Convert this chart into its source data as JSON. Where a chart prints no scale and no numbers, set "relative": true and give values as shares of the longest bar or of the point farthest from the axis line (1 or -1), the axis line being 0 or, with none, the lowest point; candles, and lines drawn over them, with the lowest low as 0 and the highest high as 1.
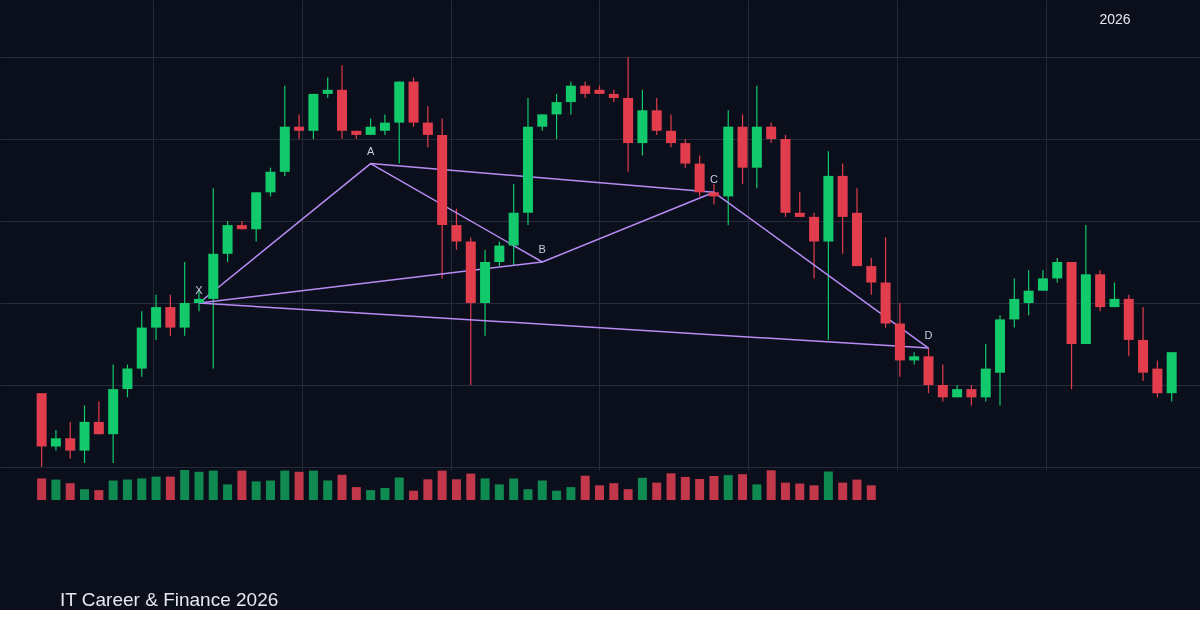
{
  "chart_data": [
    {
      "type": "candlestick",
      "relative": true,
      "grid": true,
      "categories": [
        null,
        null,
        null,
        null,
        null,
        null,
        null,
        null,
        null,
        null,
        null,
        null,
        null,
        null,
        null,
        null,
        null,
        null,
        null,
        null,
        null,
        null,
        null,
        null,
        null,
        null,
        null,
        null,
        null,
        null,
        null,
        null,
        null,
        null,
        null,
        null,
        null,
        null,
        null,
        null,
        null,
        null,
        null,
        null,
        null,
        null,
        null,
        null,
        null,
        null,
        null,
        null,
        null,
        null,
        null,
        null,
        null,
        null,
        null,
        null,
        null,
        null,
        null,
        null,
        null,
        null,
        null,
        null,
        null,
        null,
        null,
        null,
        null,
        null,
        null,
        null,
        null,
        null,
        null,
        null
      ],
      "ohlc": [
        [
          0.18,
          0.18,
          0,
          0.05
        ],
        [
          0.05,
          0.09,
          0.04,
          0.07
        ],
        [
          0.07,
          0.11,
          0.02,
          0.04
        ],
        [
          0.04,
          0.15,
          0.01,
          0.11
        ],
        [
          0.11,
          0.16,
          0.08,
          0.08
        ],
        [
          0.08,
          0.25,
          0.01,
          0.19
        ],
        [
          0.19,
          0.25,
          0.17,
          0.24
        ],
        [
          0.24,
          0.38,
          0.22,
          0.34
        ],
        [
          0.34,
          0.42,
          0.31,
          0.39
        ],
        [
          0.39,
          0.42,
          0.32,
          0.34
        ],
        [
          0.34,
          0.5,
          0.32,
          0.4
        ],
        [
          0.4,
          0.43,
          0.38,
          0.41
        ],
        [
          0.41,
          0.68,
          0.24,
          0.52
        ],
        [
          0.52,
          0.6,
          0.5,
          0.59
        ],
        [
          0.59,
          0.6,
          0.58,
          0.58
        ],
        [
          0.58,
          0.67,
          0.55,
          0.67
        ],
        [
          0.67,
          0.73,
          0.66,
          0.72
        ],
        [
          0.72,
          0.93,
          0.71,
          0.83
        ],
        [
          0.83,
          0.86,
          0.8,
          0.82
        ],
        [
          0.82,
          0.91,
          0.8,
          0.91
        ],
        [
          0.91,
          0.95,
          0.9,
          0.92
        ],
        [
          0.92,
          0.98,
          0.8,
          0.82
        ],
        [
          0.82,
          0.82,
          0.8,
          0.81
        ],
        [
          0.81,
          0.85,
          0.81,
          0.83
        ],
        [
          0.82,
          0.86,
          0.81,
          0.84
        ],
        [
          0.84,
          0.94,
          0.74,
          0.94
        ],
        [
          0.94,
          0.95,
          0.83,
          0.84
        ],
        [
          0.84,
          0.88,
          0.78,
          0.81
        ],
        [
          0.81,
          0.85,
          0.46,
          0.59
        ],
        [
          0.59,
          0.63,
          0.53,
          0.55
        ],
        [
          0.55,
          0.56,
          0.2,
          0.4
        ],
        [
          0.4,
          0.53,
          0.32,
          0.5
        ],
        [
          0.5,
          0.55,
          0.49,
          0.54
        ],
        [
          0.54,
          0.69,
          0.49,
          0.62
        ],
        [
          0.62,
          0.9,
          0.59,
          0.83
        ],
        [
          0.83,
          0.86,
          0.82,
          0.86
        ],
        [
          0.86,
          0.91,
          0.8,
          0.89
        ],
        [
          0.89,
          0.94,
          0.86,
          0.93
        ],
        [
          0.93,
          0.94,
          0.9,
          0.91
        ],
        [
          0.92,
          0.93,
          0.91,
          0.91
        ],
        [
          0.91,
          0.92,
          0.89,
          0.9
        ],
        [
          0.9,
          1,
          0.72,
          0.79
        ],
        [
          0.79,
          0.92,
          0.76,
          0.87
        ],
        [
          0.87,
          0.9,
          0.81,
          0.82
        ],
        [
          0.82,
          0.86,
          0.78,
          0.79
        ],
        [
          0.79,
          0.8,
          0.73,
          0.74
        ],
        [
          0.74,
          0.76,
          0.66,
          0.67
        ],
        [
          0.67,
          0.69,
          0.64,
          0.66
        ],
        [
          0.66,
          0.87,
          0.59,
          0.83
        ],
        [
          0.83,
          0.86,
          0.69,
          0.73
        ],
        [
          0.73,
          0.93,
          0.68,
          0.83
        ],
        [
          0.83,
          0.84,
          0.79,
          0.8
        ],
        [
          0.8,
          0.81,
          0.61,
          0.62
        ],
        [
          0.62,
          0.67,
          0.61,
          0.61
        ],
        [
          0.61,
          0.62,
          0.46,
          0.55
        ],
        [
          0.55,
          0.77,
          0.31,
          0.71
        ],
        [
          0.71,
          0.74,
          0.52,
          0.61
        ],
        [
          0.62,
          0.68,
          0.49,
          0.49
        ],
        [
          0.49,
          0.51,
          0.42,
          0.45
        ],
        [
          0.45,
          0.56,
          0.34,
          0.35
        ],
        [
          0.35,
          0.4,
          0.22,
          0.26
        ],
        [
          0.26,
          0.28,
          0.25,
          0.27
        ],
        [
          0.27,
          0.29,
          0.18,
          0.2
        ],
        [
          0.2,
          0.25,
          0.16,
          0.17
        ],
        [
          0.17,
          0.2,
          0.17,
          0.19
        ],
        [
          0.19,
          0.2,
          0.15,
          0.17
        ],
        [
          0.17,
          0.3,
          0.16,
          0.24
        ],
        [
          0.23,
          0.37,
          0.15,
          0.36
        ],
        [
          0.36,
          0.46,
          0.34,
          0.41
        ],
        [
          0.4,
          0.48,
          0.37,
          0.43
        ],
        [
          0.43,
          0.48,
          0.43,
          0.46
        ],
        [
          0.46,
          0.51,
          0.45,
          0.5
        ],
        [
          0.5,
          0.5,
          0.19,
          0.3
        ],
        [
          0.3,
          0.59,
          0.3,
          0.47
        ],
        [
          0.47,
          0.48,
          0.38,
          0.39
        ],
        [
          0.39,
          0.45,
          0.39,
          0.41
        ],
        [
          0.41,
          0.42,
          0.27,
          0.31
        ],
        [
          0.31,
          0.39,
          0.21,
          0.23
        ],
        [
          0.24,
          0.26,
          0.17,
          0.18
        ],
        [
          0.18,
          0.28,
          0.16,
          0.28
        ]
      ],
      "colors": [
        "#e23d4c",
        "#12c96b",
        "#e23d4c",
        "#12c96b",
        "#e23d4c",
        "#12c96b",
        "#12c96b",
        "#12c96b",
        "#12c96b",
        "#e23d4c",
        "#12c96b",
        "#12c96b",
        "#12c96b",
        "#12c96b",
        "#e23d4c",
        "#12c96b",
        "#12c96b",
        "#12c96b",
        "#e23d4c",
        "#12c96b",
        "#12c96b",
        "#e23d4c",
        "#e23d4c",
        "#12c96b",
        "#12c96b",
        "#12c96b",
        "#e23d4c",
        "#e23d4c",
        "#e23d4c",
        "#e23d4c",
        "#e23d4c",
        "#12c96b",
        "#12c96b",
        "#12c96b",
        "#12c96b",
        "#12c96b",
        "#12c96b",
        "#12c96b",
        "#e23d4c",
        "#e23d4c",
        "#e23d4c",
        "#e23d4c",
        "#12c96b",
        "#e23d4c",
        "#e23d4c",
        "#e23d4c",
        "#e23d4c",
        "#e23d4c",
        "#12c96b",
        "#e23d4c",
        "#12c96b",
        "#e23d4c",
        "#e23d4c",
        "#e23d4c",
        "#e23d4c",
        "#12c96b",
        "#e23d4c",
        "#e23d4c",
        "#e23d4c",
        "#e23d4c",
        "#e23d4c",
        "#12c96b",
        "#e23d4c",
        "#e23d4c",
        "#12c96b",
        "#e23d4c",
        "#12c96b",
        "#12c96b",
        "#12c96b",
        "#12c96b",
        "#12c96b",
        "#12c96b",
        "#e23d4c",
        "#12c96b",
        "#e23d4c",
        "#12c96b",
        "#e23d4c",
        "#e23d4c",
        "#e23d4c",
        "#12c96b"
      ],
      "series": [
        {
          "type": "line",
          "color": "#b88cf5",
          "values": [
            null,
            null,
            null,
            null,
            null,
            null,
            null,
            null,
            null,
            null,
            null,
            0.4,
            null,
            null,
            null,
            null,
            null,
            null,
            null,
            null,
            null,
            null,
            null,
            0.74,
            null,
            null,
            null,
            null,
            null,
            null,
            null,
            null,
            null,
            null,
            null,
            0.5,
            null,
            null,
            null,
            null,
            null,
            null,
            null,
            null,
            null,
            null,
            null,
            0.67,
            null,
            null,
            null,
            null,
            null,
            null,
            null,
            null,
            null,
            null,
            null,
            null,
            null,
            null,
            0.29,
            null,
            null,
            null,
            null,
            null,
            null,
            null,
            null,
            null,
            null,
            null,
            null,
            null,
            null,
            null,
            null,
            null
          ]
        },
        {
          "type": "line",
          "color": "#b88cf5",
          "values": [
            null,
            null,
            null,
            null,
            null,
            null,
            null,
            null,
            null,
            null,
            null,
            0.4,
            null,
            null,
            null,
            null,
            null,
            null,
            null,
            null,
            null,
            null,
            null,
            null,
            null,
            null,
            null,
            null,
            null,
            null,
            null,
            null,
            null,
            null,
            null,
            0.5,
            null,
            null,
            null,
            null,
            null,
            null,
            null,
            null,
            null,
            null,
            null,
            null,
            null,
            null,
            null,
            null,
            null,
            null,
            null,
            null,
            null,
            null,
            null,
            null,
            null,
            null,
            null,
            null,
            null,
            null,
            null,
            null,
            null,
            null,
            null,
            null,
            null,
            null,
            null,
            null,
            null,
            null,
            null,
            null
          ]
        },
        {
          "type": "line",
          "color": "#b88cf5",
          "values": [
            null,
            null,
            null,
            null,
            null,
            null,
            null,
            null,
            null,
            null,
            null,
            null,
            null,
            null,
            null,
            null,
            null,
            null,
            null,
            null,
            null,
            null,
            null,
            0.74,
            null,
            null,
            null,
            null,
            null,
            null,
            null,
            null,
            null,
            null,
            null,
            null,
            null,
            null,
            null,
            null,
            null,
            null,
            null,
            null,
            null,
            null,
            null,
            0.67,
            null,
            null,
            null,
            null,
            null,
            null,
            null,
            null,
            null,
            null,
            null,
            null,
            null,
            null,
            null,
            null,
            null,
            null,
            null,
            null,
            null,
            null,
            null,
            null,
            null,
            null,
            null,
            null,
            null,
            null,
            null,
            null
          ]
        },
        {
          "type": "line",
          "color": "#b88cf5",
          "values": [
            null,
            null,
            null,
            null,
            null,
            null,
            null,
            null,
            null,
            null,
            null,
            0.4,
            null,
            null,
            null,
            null,
            null,
            null,
            null,
            null,
            null,
            null,
            null,
            null,
            null,
            null,
            null,
            null,
            null,
            null,
            null,
            null,
            null,
            null,
            null,
            null,
            null,
            null,
            null,
            null,
            null,
            null,
            null,
            null,
            null,
            null,
            null,
            null,
            null,
            null,
            null,
            null,
            null,
            null,
            null,
            null,
            null,
            null,
            null,
            null,
            null,
            null,
            0.29,
            null,
            null,
            null,
            null,
            null,
            null,
            null,
            null,
            null,
            null,
            null,
            null,
            null,
            null,
            null,
            null,
            null
          ]
        }
      ],
      "annotations": [
        "2026",
        "X",
        "A",
        "B",
        "C",
        "D"
      ]
    },
    {
      "type": "bar",
      "relative": true,
      "categories": [
        null,
        null,
        null,
        null,
        null,
        null,
        null,
        null,
        null,
        null,
        null,
        null,
        null,
        null,
        null,
        null,
        null,
        null,
        null,
        null,
        null,
        null,
        null,
        null,
        null,
        null,
        null,
        null,
        null,
        null,
        null,
        null,
        null,
        null,
        null,
        null,
        null,
        null,
        null,
        null,
        null,
        null,
        null,
        null,
        null,
        null,
        null,
        null,
        null,
        null,
        null,
        null,
        null,
        null,
        null,
        null,
        null,
        null,
        null,
        null,
        null,
        null,
        null,
        null,
        null,
        null,
        null,
        null,
        null,
        null,
        null,
        null,
        null,
        null,
        null,
        null,
        null,
        null,
        null,
        null
      ],
      "values": [
        0.72,
        0.68,
        0.56,
        0.36,
        0.33,
        0.65,
        0.68,
        0.72,
        0.78,
        0.78,
        1,
        0.94,
        0.98,
        0.52,
        0.98,
        0.62,
        0.65,
        0.98,
        0.94,
        0.98,
        0.65,
        0.84,
        0.43,
        0.33,
        0.4,
        0.75,
        0.31,
        0.69,
        0.98,
        0.69,
        0.88,
        0.72,
        0.52,
        0.72,
        0.36,
        0.65,
        0.31,
        0.43,
        0.81,
        0.49,
        0.56,
        0.36,
        0.74,
        0.58,
        0.89,
        0.77,
        0.7,
        0.8,
        0.83,
        0.86,
        0.52,
        0.99,
        0.58,
        0.55,
        0.49,
        0.95,
        0.58,
        0.68,
        0.49,
        null,
        null,
        null,
        null,
        null,
        null,
        null,
        null,
        null,
        null,
        null,
        null,
        null,
        null,
        null,
        null,
        null,
        null,
        null,
        null,
        null
      ],
      "colors": [
        "#c2384a",
        "#0f8a50",
        "#c2384a",
        "#0f8a50",
        "#c2384a",
        "#0f8a50",
        "#0f8a50",
        "#0f8a50",
        "#0f8a50",
        "#c2384a",
        "#0f8a50",
        "#0f8a50",
        "#0f8a50",
        "#0f8a50",
        "#c2384a",
        "#0f8a50",
        "#0f8a50",
        "#0f8a50",
        "#c2384a",
        "#0f8a50",
        "#0f8a50",
        "#c2384a",
        "#c2384a",
        "#0f8a50",
        "#0f8a50",
        "#0f8a50",
        "#c2384a",
        "#c2384a",
        "#c2384a",
        "#c2384a",
        "#c2384a",
        "#0f8a50",
        "#0f8a50",
        "#0f8a50",
        "#0f8a50",
        "#0f8a50",
        "#0f8a50",
        "#0f8a50",
        "#c2384a",
        "#c2384a",
        "#c2384a",
        "#c2384a",
        "#0f8a50",
        "#c2384a",
        "#c2384a",
        "#c2384a",
        "#c2384a",
        "#c2384a",
        "#0f8a50",
        "#c2384a",
        "#0f8a50",
        "#c2384a",
        "#c2384a",
        "#c2384a",
        "#c2384a",
        "#0f8a50",
        "#c2384a",
        "#c2384a",
        "#c2384a",
        "#c2384a",
        "#c2384a",
        "#0f8a50",
        "#c2384a",
        "#c2384a",
        "#0f8a50",
        "#c2384a",
        "#0f8a50",
        "#0f8a50",
        "#0f8a50",
        "#0f8a50",
        "#0f8a50",
        "#0f8a50",
        "#c2384a",
        "#0f8a50",
        "#c2384a",
        "#0f8a50",
        "#c2384a",
        "#c2384a",
        "#c2384a",
        "#0f8a50"
      ],
      "annotations": [
        "IT Career & Finance 2026"
      ]
    }
  ]
}
